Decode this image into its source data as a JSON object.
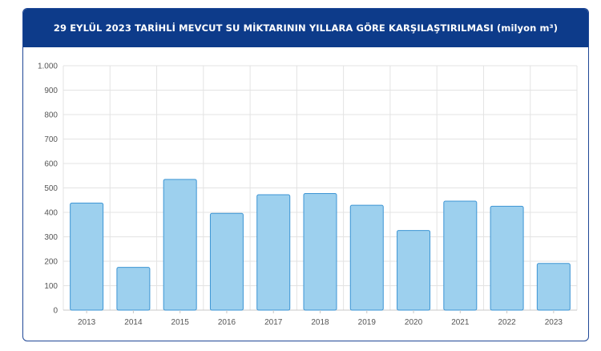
{
  "chart_data": {
    "type": "bar",
    "title": "29 EYLÜL 2023 TARİHLİ MEVCUT SU MİKTARININ YILLARA GÖRE KARŞILAŞTIRILMASI (milyon m³)",
    "categories": [
      "2013",
      "2014",
      "2015",
      "2016",
      "2017",
      "2018",
      "2019",
      "2020",
      "2021",
      "2022",
      "2023"
    ],
    "values": [
      438,
      175,
      535,
      396,
      472,
      477,
      429,
      326,
      446,
      425,
      191
    ],
    "ylim": [
      0,
      1000
    ],
    "yticks": [
      0,
      100,
      200,
      300,
      400,
      500,
      600,
      700,
      800,
      900,
      1000
    ],
    "ytick_labels": [
      "0",
      "100",
      "200",
      "300",
      "400",
      "500",
      "600",
      "700",
      "800",
      "900",
      "1.000"
    ],
    "grid": true,
    "colors": {
      "bar_fill": "#9dd0ee",
      "bar_stroke": "#3d95d4",
      "header": "#0d3b8a"
    }
  }
}
